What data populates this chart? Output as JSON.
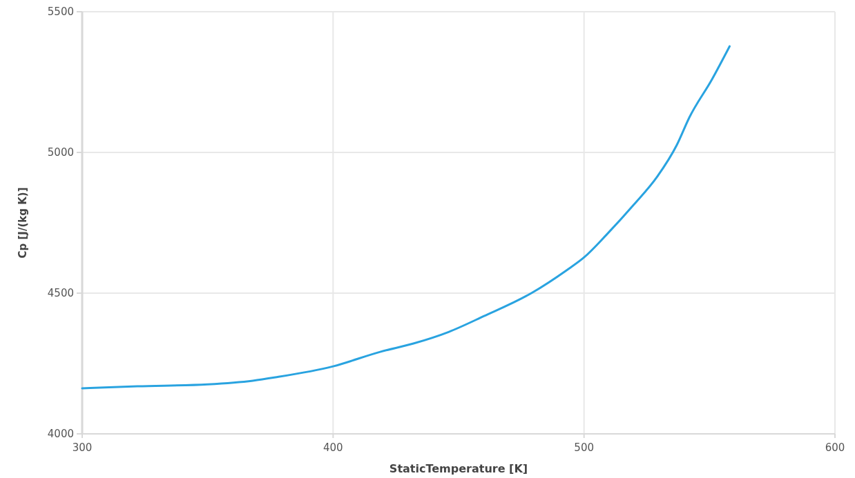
{
  "chart_data": {
    "type": "line",
    "xlabel": "StaticTemperature [K]",
    "ylabel": "Cp [J/(kg K)]",
    "x": [
      300,
      322,
      350,
      368,
      377,
      400,
      419,
      432,
      446,
      460,
      479,
      493,
      500,
      509,
      520,
      529,
      537,
      542,
      551,
      558
    ],
    "series": [
      {
        "color": "#29a3e0",
        "values": [
          4162,
          4169,
          4176,
          4189,
          4201,
          4240,
          4292,
          4321,
          4362,
          4418,
          4500,
          4581,
          4627,
          4708,
          4816,
          4912,
          5027,
          5125,
          5260,
          5377
        ]
      }
    ],
    "xlim": [
      300,
      600
    ],
    "xticks": [
      300,
      400,
      500,
      600
    ],
    "ylim": [
      4000,
      5500
    ],
    "yticks": [
      4000,
      4500,
      5000,
      5500
    ],
    "grid": true,
    "marker": "none",
    "line_style": "solid"
  }
}
